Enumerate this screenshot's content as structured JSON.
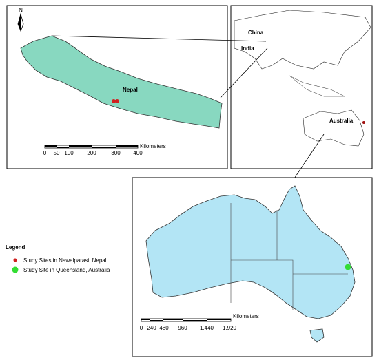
{
  "nepal_map": {
    "north_label": "N",
    "country_label": "Nepal",
    "scale": {
      "unit": "Kilometers",
      "labels": [
        "0",
        "50",
        "100",
        "200",
        "300",
        "400"
      ]
    }
  },
  "world_map": {
    "labels": [
      "China",
      "India",
      "Australia"
    ]
  },
  "australia_map": {
    "scale": {
      "unit": "Kilometers",
      "labels": [
        "0",
        "240",
        "480",
        "960",
        "1,440",
        "1,920"
      ]
    }
  },
  "legend": {
    "title": "Legend",
    "items": [
      "Study Sites in Nawalparasi, Nepal",
      "Study Site in Queensland, Australia"
    ]
  }
}
